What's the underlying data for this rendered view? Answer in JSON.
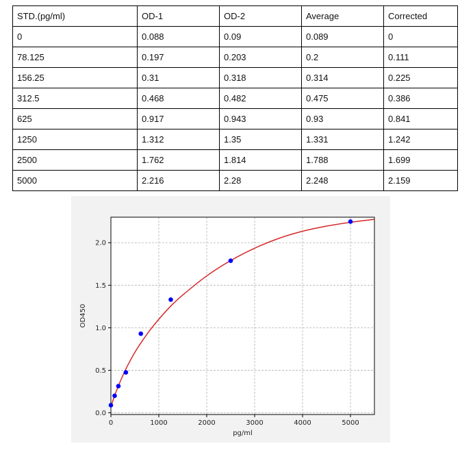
{
  "table": {
    "headers": [
      "STD.(pg/ml)",
      "OD-1",
      "OD-2",
      "Average",
      "Corrected"
    ],
    "rows": [
      [
        "0",
        "0.088",
        "0.09",
        "0.089",
        "0"
      ],
      [
        "78.125",
        "0.197",
        "0.203",
        "0.2",
        "0.111"
      ],
      [
        "156.25",
        "0.31",
        "0.318",
        "0.314",
        "0.225"
      ],
      [
        "312.5",
        "0.468",
        "0.482",
        "0.475",
        "0.386"
      ],
      [
        "625",
        "0.917",
        "0.943",
        "0.93",
        "0.841"
      ],
      [
        "1250",
        "1.312",
        "1.35",
        "1.331",
        "1.242"
      ],
      [
        "2500",
        "1.762",
        "1.814",
        "1.788",
        "1.699"
      ],
      [
        "5000",
        "2.216",
        "2.28",
        "2.248",
        "2.159"
      ]
    ]
  },
  "chart_data": {
    "type": "scatter",
    "xlabel": "pg/ml",
    "ylabel": "OD450",
    "xlim": [
      0,
      5500
    ],
    "ylim": [
      -0.02,
      2.3
    ],
    "xticks": [
      0,
      1000,
      2000,
      3000,
      4000,
      5000
    ],
    "yticks": [
      0.0,
      0.5,
      1.0,
      1.5,
      2.0
    ],
    "xtick_labels": [
      "0",
      "1000",
      "2000",
      "3000",
      "4000",
      "5000"
    ],
    "ytick_labels": [
      "0.0",
      "0.5",
      "1.0",
      "1.5",
      "2.0"
    ],
    "grid": true,
    "points": {
      "x": [
        0,
        78.125,
        156.25,
        312.5,
        625,
        1250,
        2500,
        5000
      ],
      "y": [
        0.089,
        0.2,
        0.314,
        0.475,
        0.93,
        1.331,
        1.788,
        2.248
      ],
      "color": "#0000ff"
    },
    "fit_curve": {
      "color": "#d62728",
      "x": [
        0,
        100,
        200,
        300,
        400,
        500,
        600,
        800,
        1000,
        1250,
        1500,
        2000,
        2500,
        3000,
        3500,
        4000,
        4500,
        5000,
        5500
      ],
      "y": [
        0.075,
        0.235,
        0.375,
        0.5,
        0.61,
        0.71,
        0.8,
        0.96,
        1.1,
        1.255,
        1.385,
        1.61,
        1.79,
        1.935,
        2.05,
        2.135,
        2.195,
        2.24,
        2.275
      ]
    }
  }
}
